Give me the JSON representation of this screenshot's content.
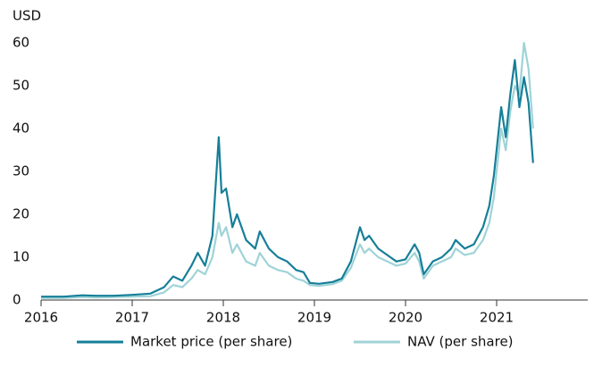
{
  "chart_data": {
    "type": "line",
    "ylabel": "USD",
    "x": [
      2016.0,
      2016.25,
      2016.45,
      2016.6,
      2016.8,
      2017.0,
      2017.2,
      2017.35,
      2017.45,
      2017.55,
      2017.65,
      2017.72,
      2017.8,
      2017.88,
      2017.95,
      2017.98,
      2018.03,
      2018.1,
      2018.15,
      2018.25,
      2018.35,
      2018.4,
      2018.5,
      2018.6,
      2018.7,
      2018.8,
      2018.88,
      2018.95,
      2019.05,
      2019.2,
      2019.3,
      2019.4,
      2019.5,
      2019.55,
      2019.6,
      2019.7,
      2019.8,
      2019.9,
      2020.0,
      2020.1,
      2020.15,
      2020.2,
      2020.3,
      2020.4,
      2020.5,
      2020.55,
      2020.65,
      2020.75,
      2020.85,
      2020.92,
      2020.97,
      2021.05,
      2021.1,
      2021.15,
      2021.2,
      2021.25,
      2021.3,
      2021.35,
      2021.4
    ],
    "series": [
      {
        "name": "Market price (per share)",
        "color": "#167f98",
        "values": [
          0.8,
          0.8,
          1.1,
          1.0,
          1.0,
          1.2,
          1.5,
          3,
          5.5,
          4.5,
          8,
          11,
          8,
          15,
          38,
          25,
          26,
          17,
          20,
          14,
          12,
          16,
          12,
          10,
          9,
          7,
          6.5,
          4,
          3.8,
          4.2,
          5,
          9,
          17,
          14,
          15,
          12,
          10.5,
          9,
          9.5,
          13,
          11,
          6,
          9,
          10,
          12,
          14,
          12,
          13,
          17,
          22,
          29,
          45,
          38,
          48,
          56,
          45,
          52,
          46,
          32
        ]
      },
      {
        "name": "NAV (per share)",
        "color": "#9fd3d7",
        "values": [
          0.5,
          0.5,
          0.7,
          0.6,
          0.7,
          0.8,
          0.9,
          1.8,
          3.5,
          3,
          5,
          7,
          6,
          10,
          18,
          15,
          17,
          11,
          13,
          9,
          8,
          11,
          8,
          7,
          6.5,
          5,
          4.5,
          3.5,
          3.3,
          3.7,
          4.5,
          7.5,
          13,
          11,
          12,
          10,
          9,
          8,
          8.5,
          11,
          9,
          5,
          8,
          9,
          10,
          12,
          10.5,
          11,
          14,
          18,
          24,
          40,
          35,
          44,
          50,
          48,
          60,
          54,
          40
        ]
      }
    ],
    "xlim": [
      2016,
      2022
    ],
    "xticks": [
      2016,
      2017,
      2018,
      2019,
      2020,
      2021
    ],
    "ylim": [
      0,
      60
    ],
    "yticks": [
      0,
      10,
      20,
      30,
      40,
      50,
      60
    ],
    "grid": false,
    "legend": "bottom"
  }
}
